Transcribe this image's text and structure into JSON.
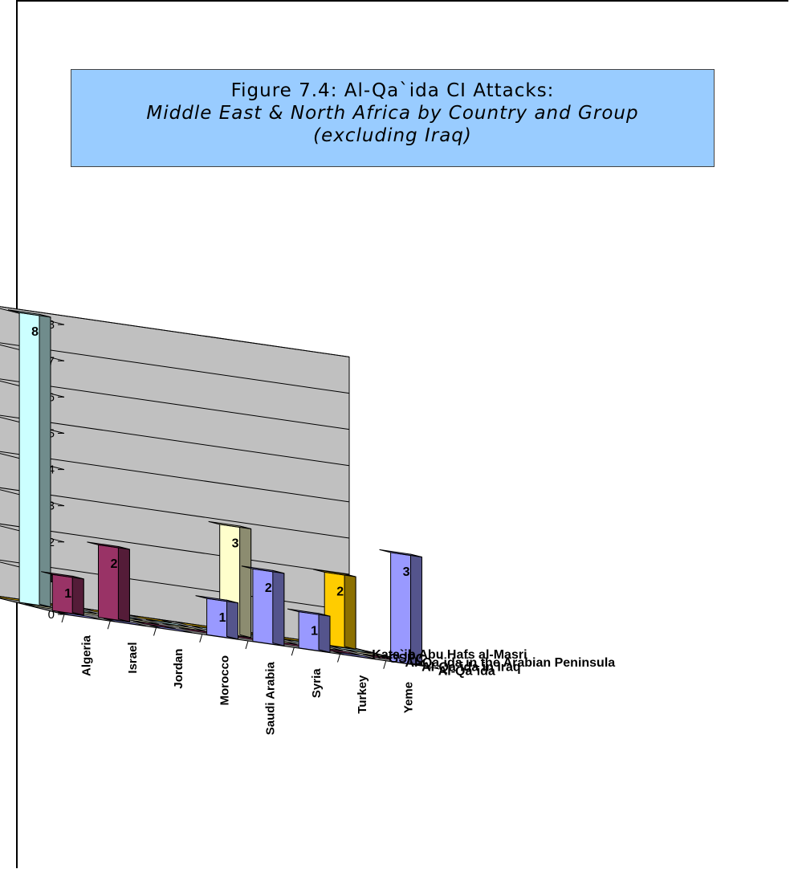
{
  "chart_data": {
    "type": "bar",
    "subtype": "3d-column",
    "title": {
      "line1": "Figure 7.4: Al-Qa`ida CI Attacks:",
      "line2": "Middle East & North Africa by Country and Group",
      "line3": "(excluding Iraq)"
    },
    "categories": [
      "Algeria",
      "Israel",
      "Jordan",
      "Morocco",
      "Saudi Arabia",
      "Syria",
      "Turkey",
      "Yeme"
    ],
    "series": [
      {
        "name": "Al-Qa`ida",
        "color": "#9999ff",
        "values": [
          0,
          0,
          0,
          1,
          2,
          1,
          0,
          3
        ]
      },
      {
        "name": "Al-Qa`ida in Iraq",
        "color": "#993366",
        "values": [
          1,
          2,
          0,
          0,
          0,
          0,
          0,
          0
        ]
      },
      {
        "name": "Al-Qa`ida in the Arabian Peninsula",
        "color": "#ffffcc",
        "values": [
          0,
          0,
          0,
          0,
          3,
          0,
          0,
          0
        ]
      },
      {
        "name": "GSPC",
        "color": "#ccffff",
        "values": [
          8,
          0,
          0,
          0,
          0,
          0,
          0,
          0
        ]
      },
      {
        "name": "Kata`ib Abu Hafs al-Masri",
        "color": "#ffcc00",
        "values": [
          0,
          0,
          0,
          0,
          0,
          0,
          0,
          2
        ]
      }
    ],
    "yticks": [
      "0",
      "1",
      "2",
      "3",
      "4",
      "5",
      "6",
      "7",
      "8"
    ],
    "ylim": [
      0,
      8
    ],
    "grid": true
  }
}
